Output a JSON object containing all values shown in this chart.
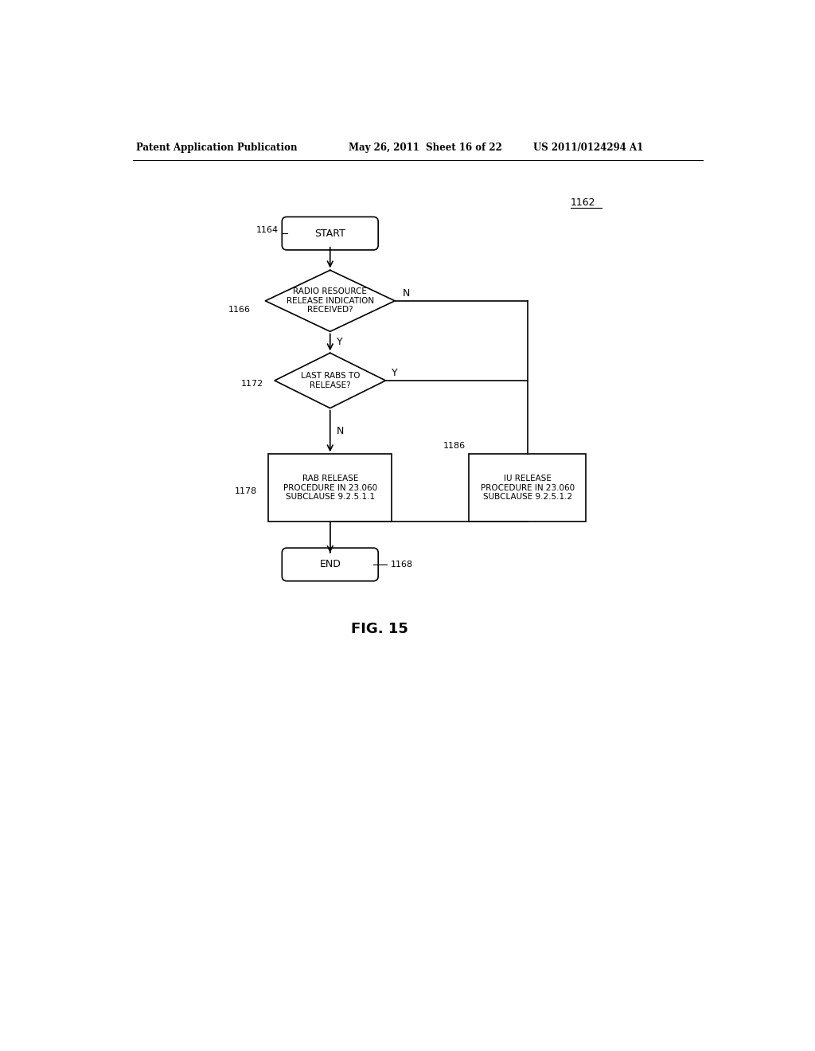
{
  "bg_color": "#ffffff",
  "header_text": "Patent Application Publication",
  "header_date": "May 26, 2011  Sheet 16 of 22",
  "header_patent": "US 2011/0124294 A1",
  "fig_label": "FIG. 15",
  "title_label": "1162",
  "start_label": "1164",
  "start_text": "START",
  "diamond1_label": "1166",
  "diamond1_text": "RADIO RESOURCE\nRELEASE INDICATION\nRECEIVED?",
  "diamond2_label": "1172",
  "diamond2_text": "LAST RABS TO\nRELEASE?",
  "box1_label": "1178",
  "box1_text": "RAB RELEASE\nPROCEDURE IN 23.060\nSUBCLAUSE 9.2.5.1.1",
  "box2_label": "1186",
  "box2_text": "IU RELEASE\nPROCEDURE IN 23.060\nSUBCLAUSE 9.2.5.1.2",
  "end_label": "1168",
  "end_text": "END",
  "line_color": "#000000",
  "text_color": "#000000",
  "font_size_main": 9,
  "font_size_label": 8,
  "font_size_header": 8.5
}
